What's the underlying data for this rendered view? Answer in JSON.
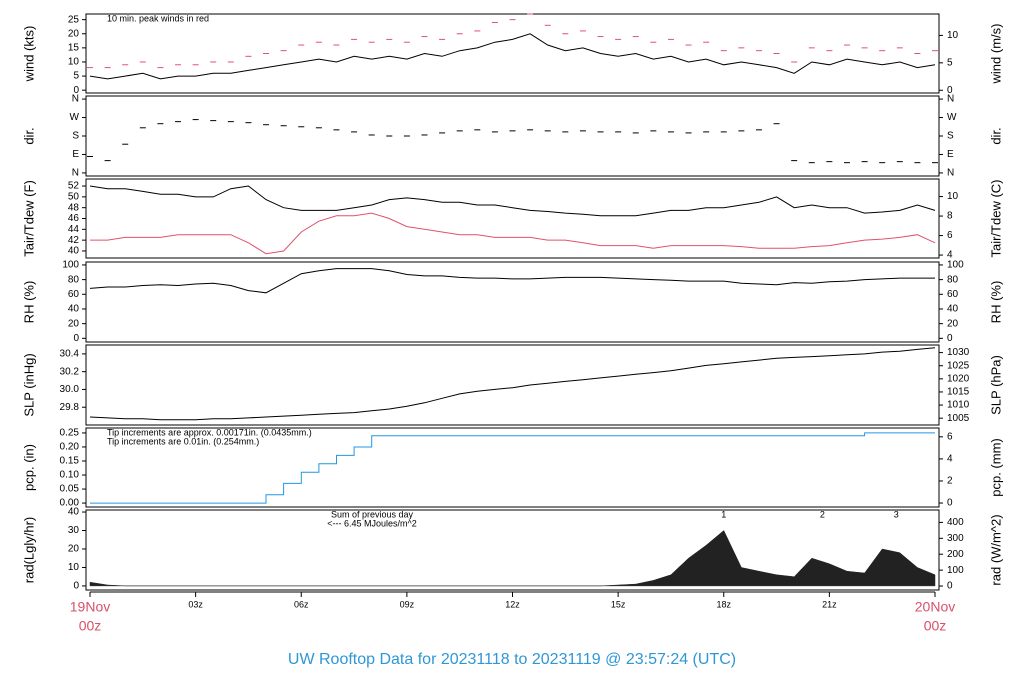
{
  "title": "UW Rooftop Data for 20231118  to  20231119 @ 23:57:24  (UTC)",
  "time_axis": {
    "xlim": [
      0,
      24
    ],
    "x": [
      0,
      0.5,
      1,
      1.5,
      2,
      2.5,
      3,
      3.5,
      4,
      4.5,
      5,
      5.5,
      6,
      6.5,
      7,
      7.5,
      8,
      8.5,
      9,
      9.5,
      10,
      10.5,
      11,
      11.5,
      12,
      12.5,
      13,
      13.5,
      14,
      14.5,
      15,
      15.5,
      16,
      16.5,
      17,
      17.5,
      18,
      18.5,
      19,
      19.5,
      20,
      20.5,
      21,
      21.5,
      22,
      22.5,
      23,
      23.5,
      24
    ],
    "xticks": [
      {
        "value": 0,
        "label": "19Nov",
        "sublabel": "00z"
      },
      {
        "value": 3,
        "label": "03z"
      },
      {
        "value": 6,
        "label": "06z"
      },
      {
        "value": 9,
        "label": "09z"
      },
      {
        "value": 12,
        "label": "12z"
      },
      {
        "value": 15,
        "label": "15z"
      },
      {
        "value": 18,
        "label": "18z"
      },
      {
        "value": 21,
        "label": "21z"
      },
      {
        "value": 24,
        "label": "20Nov",
        "sublabel": "00z"
      }
    ]
  },
  "chart_data": [
    {
      "type": "line",
      "ylabel": "wind (kts)",
      "y2label": "wind (m/s)",
      "ylim": [
        -1,
        27
      ],
      "yticks": [
        0,
        5,
        10,
        15,
        20,
        25
      ],
      "y2lim": [
        -0.5,
        13.9
      ],
      "y2ticks": [
        0,
        5,
        10
      ],
      "notes": [
        {
          "text": "10 min. peak winds in red",
          "color": "#df536b"
        }
      ],
      "series": [
        {
          "name": "wind",
          "style": "line",
          "color": "#000000",
          "values": [
            5,
            4,
            5,
            6,
            4,
            5,
            5,
            6,
            6,
            7,
            8,
            9,
            10,
            11,
            10,
            12,
            11,
            12,
            11,
            13,
            12,
            14,
            15,
            17,
            18,
            20,
            16,
            14,
            15,
            13,
            12,
            13,
            11,
            12,
            10,
            11,
            9,
            10,
            9,
            8,
            6,
            10,
            9,
            11,
            10,
            9,
            10,
            8,
            9
          ]
        },
        {
          "name": "peak",
          "style": "dash",
          "color": "#df536b",
          "values": [
            8,
            8,
            9,
            10,
            8,
            9,
            9,
            10,
            10,
            12,
            13,
            14,
            16,
            17,
            16,
            18,
            17,
            18,
            17,
            19,
            18,
            20,
            21,
            24,
            25,
            27,
            23,
            20,
            21,
            19,
            18,
            19,
            17,
            18,
            16,
            17,
            14,
            15,
            14,
            13,
            10,
            15,
            14,
            16,
            15,
            14,
            15,
            13,
            14
          ]
        }
      ]
    },
    {
      "type": "line",
      "ylabel": "dir.",
      "y2label": "dir.",
      "ylim": [
        -15,
        375
      ],
      "yticks": [
        {
          "value": 0,
          "label": "N"
        },
        {
          "value": 90,
          "label": "E"
        },
        {
          "value": 180,
          "label": "S"
        },
        {
          "value": 270,
          "label": "W"
        },
        {
          "value": 360,
          "label": "N"
        }
      ],
      "y2lim": [
        -15,
        375
      ],
      "y2ticks": [
        {
          "value": 0,
          "label": "N"
        },
        {
          "value": 90,
          "label": "E"
        },
        {
          "value": 180,
          "label": "S"
        },
        {
          "value": 270,
          "label": "W"
        },
        {
          "value": 360,
          "label": "N"
        }
      ],
      "series": [
        {
          "name": "dir",
          "style": "dash",
          "color": "#000000",
          "values": [
            80,
            60,
            140,
            220,
            240,
            250,
            260,
            255,
            250,
            245,
            235,
            230,
            225,
            220,
            210,
            200,
            185,
            180,
            180,
            185,
            195,
            205,
            210,
            200,
            205,
            210,
            205,
            200,
            205,
            200,
            200,
            195,
            205,
            200,
            195,
            200,
            200,
            205,
            210,
            240,
            60,
            50,
            55,
            50,
            55,
            50,
            55,
            50,
            50
          ]
        }
      ]
    },
    {
      "type": "line",
      "ylabel": "Tair/Tdew (F)",
      "y2label": "Tair/Tdew (C)",
      "ylim": [
        38.7,
        53.3
      ],
      "yticks": [
        40,
        42,
        44,
        46,
        48,
        50,
        52
      ],
      "y2lim": [
        3.7,
        11.8
      ],
      "y2ticks": [
        4,
        6,
        8,
        10
      ],
      "series": [
        {
          "name": "Tair",
          "style": "line",
          "color": "#000000",
          "values": [
            52,
            51.5,
            51.5,
            51,
            50.5,
            50.5,
            50,
            50,
            51.5,
            52,
            49.5,
            48,
            47.5,
            47.5,
            47.5,
            48,
            48.5,
            49.5,
            49.8,
            49.5,
            49,
            49,
            48.5,
            48.5,
            48,
            47.5,
            47.3,
            47,
            46.8,
            46.5,
            46.5,
            46.5,
            47,
            47.5,
            47.5,
            48,
            48,
            48.5,
            49,
            50,
            48,
            48.5,
            48,
            48,
            47,
            47.2,
            47.5,
            48.5,
            47.5
          ]
        },
        {
          "name": "Tdew",
          "style": "line",
          "color": "#df536b",
          "values": [
            42,
            42,
            42.5,
            42.5,
            42.5,
            43,
            43,
            43,
            43,
            41.5,
            39.5,
            40,
            43.5,
            45.5,
            46.5,
            46.5,
            47,
            46,
            44.5,
            44,
            43.5,
            43,
            43,
            42.5,
            42.5,
            42.5,
            42,
            42,
            41.5,
            41,
            41,
            41,
            40.5,
            41,
            41,
            41,
            41,
            40.8,
            40.5,
            40.5,
            40.5,
            40.8,
            41,
            41.5,
            42,
            42.2,
            42.5,
            43,
            41.5
          ]
        }
      ]
    },
    {
      "type": "line",
      "ylabel": "RH (%)",
      "y2label": "RH (%)",
      "ylim": [
        -5,
        104
      ],
      "yticks": [
        0,
        20,
        40,
        60,
        80,
        100
      ],
      "y2lim": [
        -5,
        104
      ],
      "y2ticks": [
        0,
        20,
        40,
        60,
        80,
        100
      ],
      "series": [
        {
          "name": "RH",
          "style": "line",
          "color": "#000000",
          "values": [
            68,
            70,
            70,
            72,
            73,
            72,
            74,
            75,
            72,
            65,
            62,
            75,
            88,
            92,
            95,
            95,
            95,
            92,
            87,
            85,
            85,
            83,
            82,
            82,
            81,
            81,
            82,
            83,
            83,
            83,
            82,
            81,
            80,
            79,
            78,
            78,
            78,
            75,
            74,
            73,
            76,
            75,
            77,
            78,
            80,
            81,
            82,
            82,
            82
          ]
        }
      ]
    },
    {
      "type": "line",
      "ylabel": "SLP (inHg)",
      "y2label": "SLP (hPa)",
      "ylim": [
        29.6,
        30.5
      ],
      "yticks": [
        29.8,
        {
          "value": 30,
          "label": "30.0"
        },
        30.2,
        30.4
      ],
      "y2lim": [
        1002.4,
        1032.9
      ],
      "y2ticks": [
        1005,
        1010,
        1015,
        1020,
        1025,
        1030
      ],
      "series": [
        {
          "name": "SLP",
          "style": "line",
          "color": "#000000",
          "values": [
            29.69,
            29.68,
            29.67,
            29.67,
            29.66,
            29.66,
            29.66,
            29.67,
            29.67,
            29.68,
            29.69,
            29.7,
            29.71,
            29.72,
            29.73,
            29.74,
            29.76,
            29.78,
            29.81,
            29.85,
            29.9,
            29.95,
            29.98,
            30,
            30.02,
            30.05,
            30.07,
            30.09,
            30.11,
            30.13,
            30.15,
            30.17,
            30.19,
            30.21,
            30.24,
            30.27,
            30.29,
            30.31,
            30.33,
            30.35,
            30.36,
            30.37,
            30.38,
            30.39,
            30.4,
            30.42,
            30.43,
            30.45,
            30.47
          ]
        }
      ]
    },
    {
      "type": "line",
      "ylabel": "pcp. (in)",
      "y2label": "pcp. (mm)",
      "ylim": [
        -0.014,
        0.2676
      ],
      "yticks": [
        {
          "value": 0,
          "label": "0.00"
        },
        0.05,
        {
          "value": 0.1,
          "label": "0.10"
        },
        0.15,
        {
          "value": 0.2,
          "label": "0.20"
        },
        0.25
      ],
      "y2lim": [
        -0.36,
        6.8
      ],
      "y2ticks": [
        0,
        2,
        4,
        6
      ],
      "notes": [
        {
          "text": "Tip increments are approx. 0.00171in. (0.0435mm.)",
          "color": "#df536b"
        },
        {
          "text": "Tip increments are 0.01in. (0.254mm.)",
          "color": "#2297e6"
        }
      ],
      "series": [
        {
          "name": "pcp",
          "style": "step",
          "color": "#2297e6",
          "values": [
            0,
            0,
            0,
            0,
            0,
            0,
            0,
            0,
            0,
            0,
            0.03,
            0.07,
            0.11,
            0.14,
            0.17,
            0.2,
            0.24,
            0.24,
            0.24,
            0.24,
            0.24,
            0.24,
            0.24,
            0.24,
            0.24,
            0.24,
            0.24,
            0.24,
            0.24,
            0.24,
            0.24,
            0.24,
            0.24,
            0.24,
            0.24,
            0.24,
            0.24,
            0.24,
            0.24,
            0.24,
            0.24,
            0.24,
            0.24,
            0.24,
            0.25,
            0.25,
            0.25,
            0.25,
            0.25
          ]
        }
      ]
    },
    {
      "type": "line",
      "ylabel": "rad(Lgly/hr)",
      "y2label": "rad (W/m^2)",
      "ylim": [
        -2.2,
        41.1
      ],
      "yticks": [
        0,
        10,
        20,
        30,
        40
      ],
      "y2lim": [
        -25,
        478
      ],
      "y2ticks": [
        0,
        100,
        200,
        300,
        400
      ],
      "notes": [
        {
          "text": "Sum of previous day",
          "color": "#9900cc"
        },
        {
          "text": "<--- 6.45 MJoules/m^2",
          "color": "#9900cc"
        }
      ],
      "markers": [
        {
          "label": "1",
          "x": 18
        },
        {
          "label": "2",
          "x": 20.8
        },
        {
          "label": "3",
          "x": 22.9
        }
      ],
      "series": [
        {
          "name": "rad",
          "style": "area",
          "color": "#222222",
          "values": [
            2,
            0.5,
            0,
            0,
            0,
            0,
            0,
            0,
            0,
            0,
            0,
            0,
            0,
            0,
            0,
            0,
            0,
            0,
            0,
            0,
            0,
            0,
            0,
            0,
            0,
            0,
            0,
            0,
            0,
            0,
            0.5,
            1,
            3,
            6,
            15,
            22,
            30,
            10,
            8,
            6,
            5,
            15,
            12,
            8,
            7,
            20,
            18,
            10,
            6
          ]
        }
      ]
    }
  ]
}
